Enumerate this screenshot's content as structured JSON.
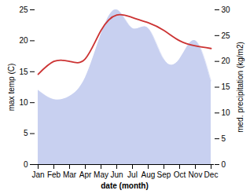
{
  "chart_data": {
    "type": "area",
    "categories": [
      "Jan",
      "Feb",
      "Mar",
      "Apr",
      "May",
      "Jun",
      "Jul",
      "Aug",
      "Sep",
      "Oct",
      "Nov",
      "Dec"
    ],
    "xlabel": "date (month)",
    "ylabel": "max temp (C)",
    "y2label": "med. precipitation (kg/m2)",
    "ylim": [
      0,
      25
    ],
    "yticks": [
      0,
      5,
      10,
      15,
      20,
      25
    ],
    "y2lim": [
      0,
      30
    ],
    "y2ticks": [
      0,
      5,
      10,
      15,
      20,
      25,
      30
    ],
    "grid": false,
    "series": [
      {
        "type": "area",
        "color": "#c8d0f0",
        "values": [
          12.0,
          10.5,
          11.0,
          14.0,
          21.0,
          25.0,
          22.0,
          22.0,
          17.0,
          17.0,
          20.0,
          13.5
        ]
      },
      {
        "type": "line",
        "color": "#cc3333",
        "axis": "y2",
        "values": [
          17.5,
          20.0,
          20.0,
          20.5,
          26.0,
          29.0,
          28.5,
          27.5,
          26.0,
          24.0,
          23.0,
          22.5
        ]
      }
    ]
  }
}
